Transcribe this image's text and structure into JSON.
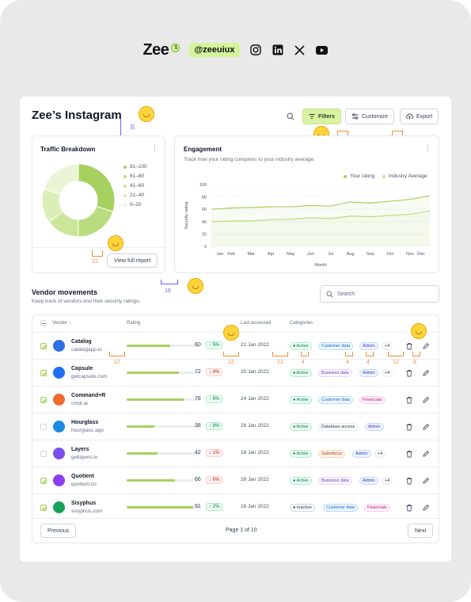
{
  "brand": {
    "logo": "Zee",
    "badge": "$",
    "handle": "@zeeuiux"
  },
  "social_icons": [
    "instagram-icon",
    "linkedin-icon",
    "x-icon",
    "youtube-icon"
  ],
  "page": {
    "title": "Zee’s Instagram"
  },
  "toolbar": {
    "filters_label": "Filters",
    "customize_label": "Customize",
    "export_label": "Export"
  },
  "traffic": {
    "title": "Traffic Breakdown",
    "legend": [
      "81–100",
      "61–80",
      "41–60",
      "21–40",
      "0–20"
    ],
    "button_label": "View full report"
  },
  "engagement": {
    "title": "Engagement",
    "subtitle": "Track how your rating compares to your industry average.",
    "legend_your": "Your rating",
    "legend_avg": "Industry Average",
    "ylabel": "Security rating",
    "xlabel": "Month"
  },
  "chart_data": {
    "type": "area",
    "x": [
      "Jan",
      "Feb",
      "Mar",
      "Apr",
      "May",
      "Jun",
      "Jul",
      "Aug",
      "Sep",
      "Oct",
      "Nov",
      "Dec"
    ],
    "ylim": [
      0,
      100
    ],
    "yticks": [
      0,
      20,
      40,
      60,
      80,
      100
    ],
    "series": [
      {
        "name": "Your rating",
        "values": [
          60,
          62,
          63,
          64,
          64,
          66,
          65,
          72,
          70,
          73,
          76,
          82
        ]
      },
      {
        "name": "Industry Average",
        "values": [
          40,
          41,
          41,
          43,
          44,
          46,
          45,
          49,
          48,
          50,
          52,
          57
        ]
      }
    ]
  },
  "donut": {
    "values": [
      30,
      20,
      15,
      15,
      20
    ],
    "colors": [
      "#a6d160",
      "#b9dc7e",
      "#cbe69b",
      "#dbeeb8",
      "#ebf5d6"
    ]
  },
  "measurements": {
    "title_gap": "16",
    "filters_gap": "8",
    "export_gap": "8",
    "card_gap": "12",
    "section_gap": "16"
  },
  "vendors": {
    "title": "Vendor movements",
    "subtitle": "Keep track of vendors and their security ratings.",
    "search_placeholder": "Search",
    "columns": {
      "vendor": "Vendor",
      "rating": "Rating",
      "last": "Last assessed",
      "categories": "Categories"
    },
    "rows": [
      {
        "name": "Catalog",
        "site": "catalogapp.io",
        "rating": 60,
        "change": "5%",
        "dir": "up",
        "date": "22 Jan 2022",
        "checked": true,
        "avatar": "#2f6fe4",
        "tags": [
          {
            "t": "Active",
            "c": "t-active"
          },
          {
            "t": "Customer data",
            "c": "t-blue"
          },
          {
            "t": "Admin",
            "c": "t-indigo"
          },
          {
            "t": "+4",
            "c": "t-gray"
          }
        ]
      },
      {
        "name": "Capsule",
        "site": "getcapsule.com",
        "rating": 72,
        "change": "4%",
        "dir": "down",
        "date": "20 Jan 2022",
        "checked": true,
        "avatar": "#1e6ff1",
        "tags": [
          {
            "t": "Active",
            "c": "t-active"
          },
          {
            "t": "Business data",
            "c": "t-purple"
          },
          {
            "t": "Admin",
            "c": "t-indigo"
          },
          {
            "t": "+4",
            "c": "t-gray"
          }
        ]
      },
      {
        "name": "Command+R",
        "site": "cmdr.ai",
        "rating": 78,
        "change": "6%",
        "dir": "up",
        "date": "24 Jan 2022",
        "checked": true,
        "avatar": "#f06a2d",
        "tags": [
          {
            "t": "Active",
            "c": "t-active"
          },
          {
            "t": "Customer data",
            "c": "t-blue"
          },
          {
            "t": "Financials",
            "c": "t-pink"
          }
        ]
      },
      {
        "name": "Hourglass",
        "site": "hourglass.app",
        "rating": 38,
        "change": "8%",
        "dir": "up",
        "date": "26 Jan 2022",
        "checked": false,
        "avatar": "#1b8be0",
        "tags": [
          {
            "t": "Active",
            "c": "t-active"
          },
          {
            "t": "Database access",
            "c": "t-gray"
          },
          {
            "t": "Admin",
            "c": "t-indigo"
          }
        ]
      },
      {
        "name": "Layers",
        "site": "getlayers.io",
        "rating": 42,
        "change": "1%",
        "dir": "down",
        "date": "18 Jan 2022",
        "checked": false,
        "avatar": "#7b4ef0",
        "tags": [
          {
            "t": "Active",
            "c": "t-active"
          },
          {
            "t": "Salesforce",
            "c": "t-orange"
          },
          {
            "t": "Admin",
            "c": "t-indigo"
          },
          {
            "t": "+4",
            "c": "t-gray"
          }
        ]
      },
      {
        "name": "Quotient",
        "site": "quotient.co",
        "rating": 66,
        "change": "6%",
        "dir": "down",
        "date": "28 Jan 2022",
        "checked": true,
        "avatar": "#8b3df0",
        "tags": [
          {
            "t": "Active",
            "c": "t-active"
          },
          {
            "t": "Business data",
            "c": "t-purple"
          },
          {
            "t": "Admin",
            "c": "t-indigo"
          },
          {
            "t": "+4",
            "c": "t-gray"
          }
        ]
      },
      {
        "name": "Sisyphus",
        "site": "sisyphus.com",
        "rating": 91,
        "change": "2%",
        "dir": "up",
        "date": "16 Jan 2022",
        "checked": true,
        "avatar": "#18a35a",
        "tags": [
          {
            "t": "Inactive",
            "c": "t-inactive"
          },
          {
            "t": "Customer data",
            "c": "t-blue"
          },
          {
            "t": "Financials",
            "c": "t-pink"
          }
        ]
      }
    ],
    "pagination": {
      "prev": "Previous",
      "label": "Page 1 of 10",
      "next": "Next"
    }
  }
}
